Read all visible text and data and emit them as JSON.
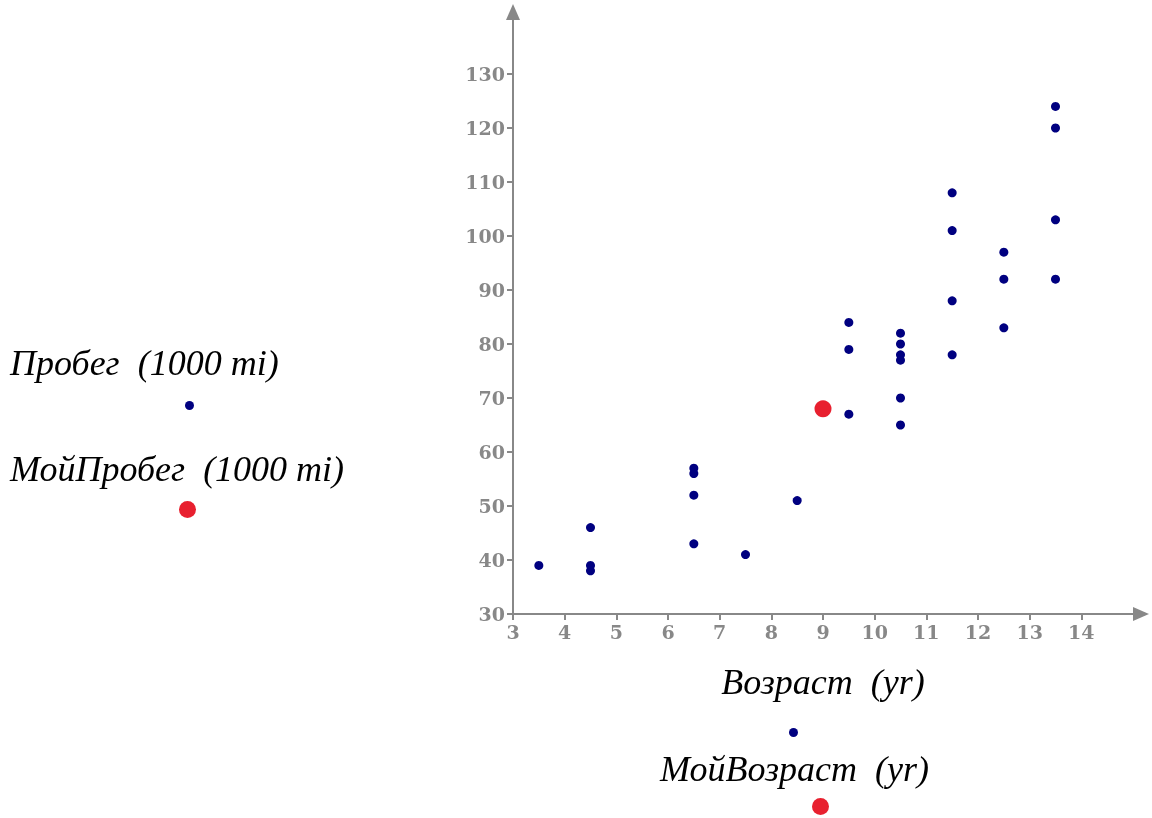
{
  "chart_data": {
    "type": "scatter",
    "xlabel": "Возраст  (yr)",
    "annotations": [
      "Пробег  (1000 mi)",
      "МойПробег  (1000 mi)",
      "МойВозраст  (yr)"
    ],
    "series": [
      {
        "color": "#000080",
        "x": [
          3.5,
          4.5,
          4.5,
          4.5,
          6.5,
          6.5,
          6.5,
          6.5,
          7.5,
          8.5,
          9.5,
          9.5,
          9.5,
          10.5,
          10.5,
          10.5,
          10.5,
          10.5,
          10.5,
          11.5,
          11.5,
          11.5,
          11.5,
          12.5,
          12.5,
          12.5,
          13.5,
          13.5,
          13.5,
          13.5
        ],
        "values": [
          39,
          46,
          39,
          38,
          57,
          56,
          52,
          43,
          41,
          51,
          84,
          79,
          67,
          82,
          80,
          78,
          77,
          70,
          65,
          108,
          101,
          88,
          78,
          97,
          92,
          83,
          124,
          120,
          103,
          92
        ]
      },
      {
        "color": "#e8202f",
        "x": [
          9
        ],
        "values": [
          68
        ]
      }
    ],
    "xlim": [
      3,
      15
    ],
    "xticks": [
      3,
      4,
      5,
      6,
      7,
      8,
      9,
      10,
      11,
      12,
      13,
      14
    ],
    "ylim": [
      30,
      140
    ],
    "yticks": [
      30,
      40,
      50,
      60,
      70,
      80,
      90,
      100,
      110,
      120,
      130
    ],
    "grid": false,
    "marker": "circle"
  }
}
